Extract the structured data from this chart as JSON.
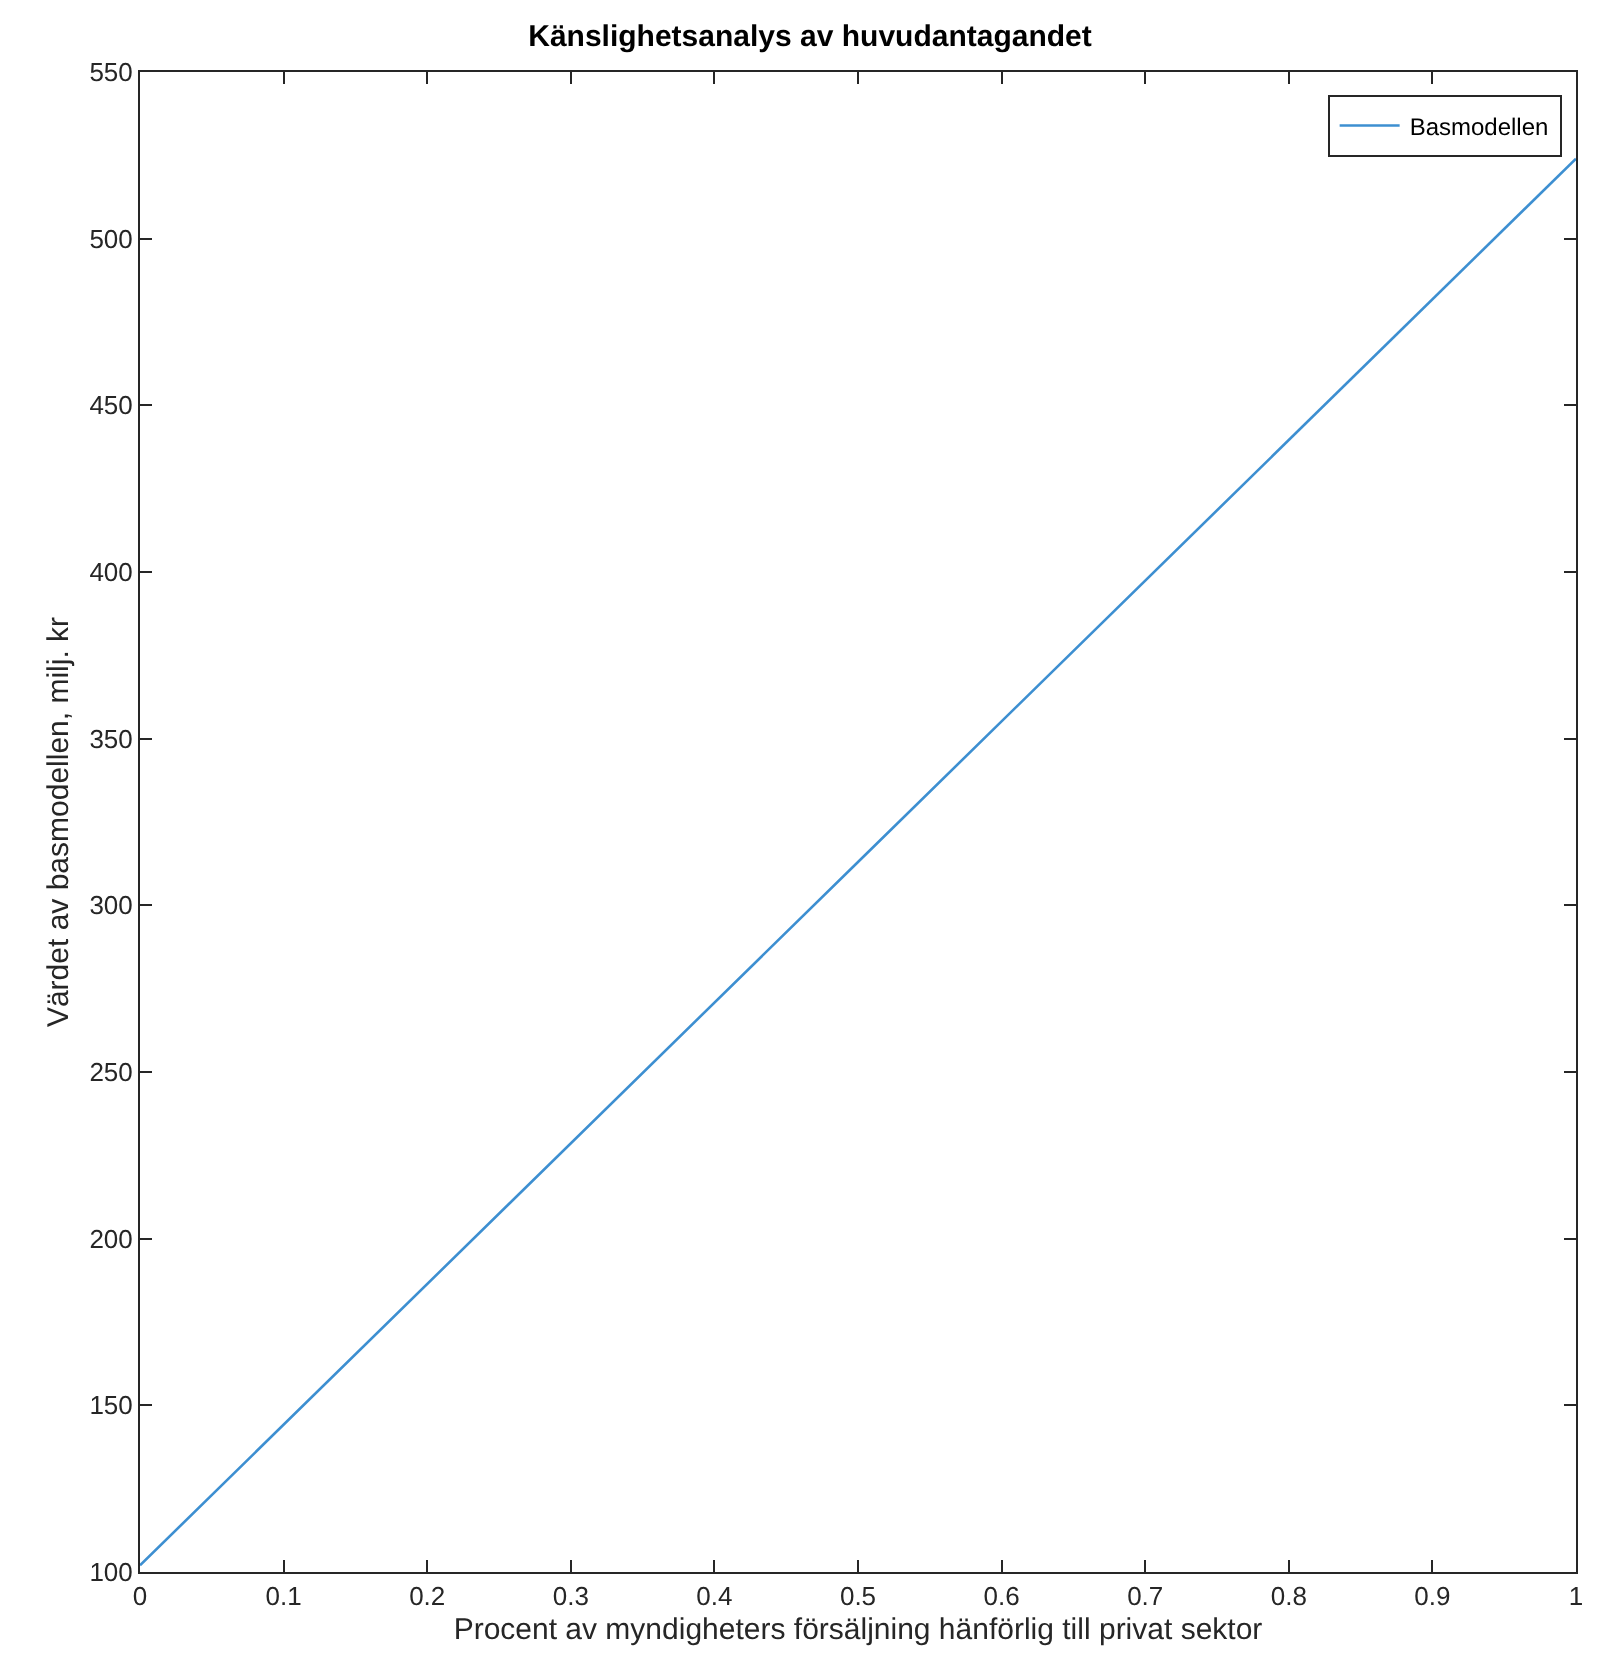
{
  "chart_data": {
    "type": "line",
    "title": "Känslighetsanalys av huvudantagandet",
    "xlabel": "Procent av myndigheters försäljning hänförlig till privat sektor",
    "ylabel": "Värdet av basmodellen, milj. kr",
    "x": [
      0,
      0.5,
      1
    ],
    "series": [
      {
        "name": "Basmodellen",
        "color": "#3d8fd1",
        "values": [
          102,
          313,
          524
        ]
      }
    ],
    "xlim": [
      0,
      1
    ],
    "xticks": [
      0,
      0.1,
      0.2,
      0.3,
      0.4,
      0.5,
      0.6,
      0.7,
      0.8,
      0.9,
      1
    ],
    "ylim": [
      100,
      550
    ],
    "yticks": [
      100,
      150,
      200,
      250,
      300,
      350,
      400,
      450,
      500,
      550
    ],
    "legend": "top right",
    "marker": "none",
    "line_style": "solid"
  }
}
